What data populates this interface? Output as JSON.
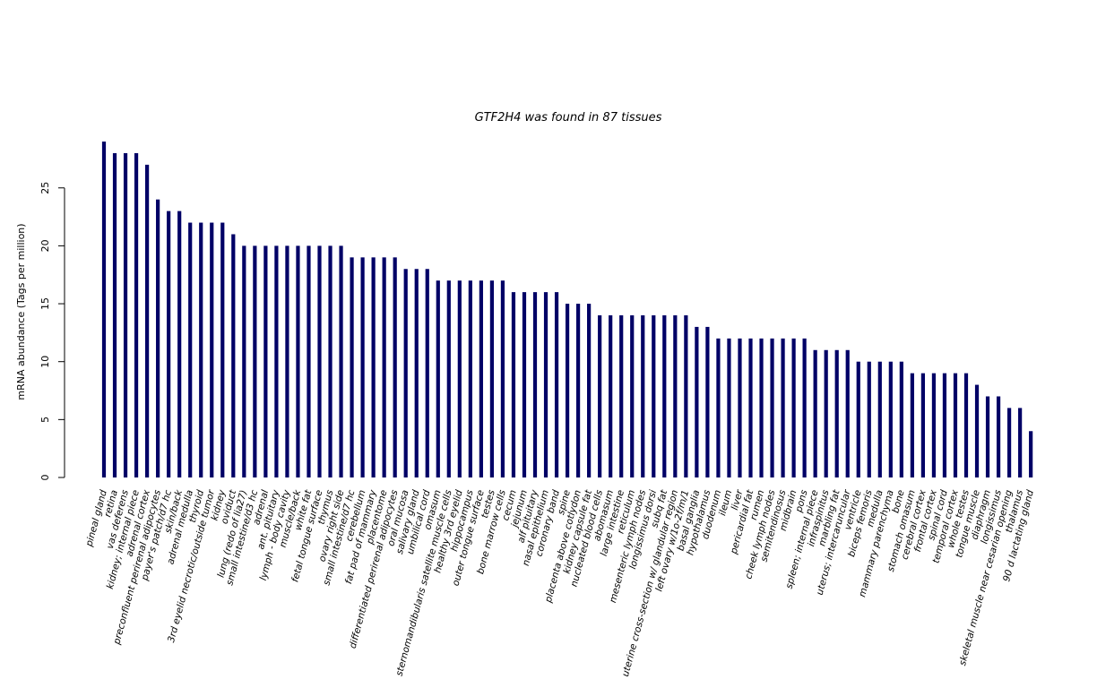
{
  "chart_data": {
    "type": "bar",
    "title": "GTF2H4  was found in  87  tissues",
    "xlabel": "",
    "ylabel": "mRNA abundance (Tags per million)",
    "ylim": [
      0,
      29
    ],
    "yticks": [
      0,
      5,
      10,
      15,
      20,
      25
    ],
    "bar_color": "#000066",
    "grid": false,
    "legend": "none",
    "categories": [
      "pineal gland",
      "retina",
      "vas deferens",
      "kidney; internal piece",
      "adrenal cortex",
      "preconfluent perirenal adipocytes",
      "payer's patch/d7 hc",
      "skin/back",
      "adrenal medulla",
      "thyroid",
      "3rd eyelid necrotic/outside tumor",
      "kidney",
      "oviduct",
      "lung (redo of lia27)",
      "small intestine/d3 hc",
      "adrenal",
      "ant. pituitary",
      "lymph - body cavity",
      "muscle/back",
      "white fat",
      "fetal tongue surface",
      "thymus",
      "ovary right side",
      "small intestine/d7 hc",
      "cerebellum",
      "fat pad of mammary",
      "placentome",
      "differentiated perirenal adipocytes",
      "oral mucosa",
      "salivary gland",
      "umbilical cord",
      "omasum",
      "sternomandibularis satellite muscle cells",
      "healthy 3rd eyelid",
      "hippocampus",
      "outer tongue surface",
      "testes",
      "bone marrow cells",
      "cecum",
      "jejunum",
      "alf pituitary",
      "nasal epithelium",
      "coronary band",
      "spine",
      "placenta above cotlydon",
      "kidney capsule fat",
      "nucleated blood cells",
      "abomasum",
      "large intestine",
      "reticulum",
      "mesenteric lymph nodes",
      "longissimus dorsi",
      "subq fat",
      "uterine cross-section w/ glandular region",
      "left ovary w/1o-2f/m/1",
      "basal ganglia",
      "hypothalamus",
      "duodenum",
      "ileum",
      "liver",
      "pericardial fat",
      "rumen",
      "cheek lymph nodes",
      "semitendinosus",
      "midbrain",
      "pons",
      "spleen; internal piece",
      "infraspinitus",
      "marbling fat",
      "uterus; intercaruncular",
      "ventricle",
      "biceps femoris",
      "medulla",
      "mammary parenchyma",
      "bone",
      "stomach omasum",
      "cerebral cortex",
      "frontal cortex",
      "spinal cord",
      "temporal cortex",
      "whole testes",
      "tongue muscle",
      "diaphragm",
      "longissimus",
      "skeletal muscle near cesarian opening",
      "thalamus",
      "90 d lactating gland"
    ],
    "values": [
      29,
      28,
      28,
      28,
      27,
      24,
      23,
      23,
      22,
      22,
      22,
      22,
      21,
      20,
      20,
      20,
      20,
      20,
      20,
      20,
      20,
      20,
      20,
      19,
      19,
      19,
      19,
      19,
      18,
      18,
      18,
      17,
      17,
      17,
      17,
      17,
      17,
      17,
      16,
      16,
      16,
      16,
      16,
      15,
      15,
      15,
      14,
      14,
      14,
      14,
      14,
      14,
      14,
      14,
      14,
      13,
      13,
      12,
      12,
      12,
      12,
      12,
      12,
      12,
      12,
      12,
      11,
      11,
      11,
      11,
      10,
      10,
      10,
      10,
      10,
      9,
      9,
      9,
      9,
      9,
      9,
      8,
      7,
      7,
      6,
      6,
      4
    ]
  }
}
